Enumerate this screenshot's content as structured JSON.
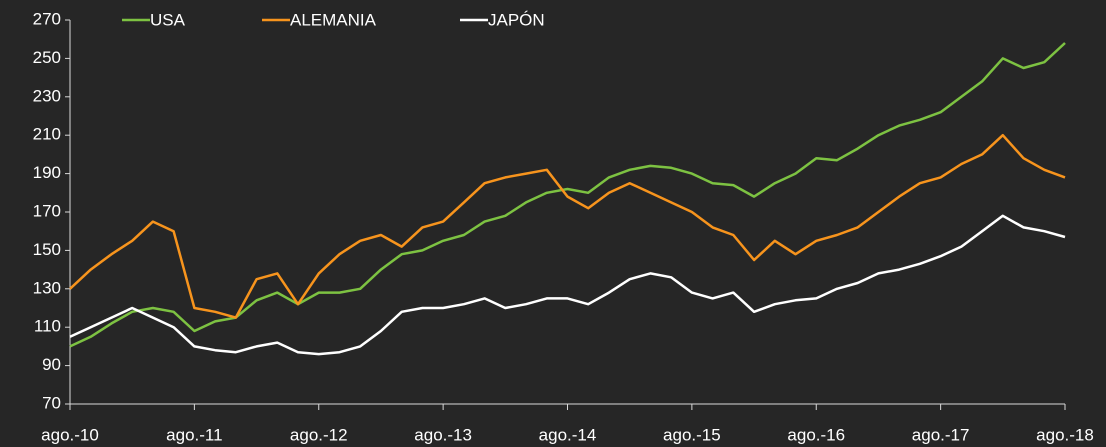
{
  "chart_data": {
    "type": "line",
    "categories": [
      "ago.-10",
      null,
      null,
      null,
      null,
      null,
      "ago.-11",
      null,
      null,
      null,
      null,
      null,
      "ago.-12",
      null,
      null,
      null,
      null,
      null,
      "ago.-13",
      null,
      null,
      null,
      null,
      null,
      "ago.-14",
      null,
      null,
      null,
      null,
      null,
      "ago.-15",
      null,
      null,
      null,
      null,
      null,
      "ago.-16",
      null,
      null,
      null,
      null,
      null,
      "ago.-17",
      null,
      null,
      null,
      null,
      null,
      "ago.-18"
    ],
    "series": [
      {
        "name": "USA",
        "color": "#7dc242",
        "values": [
          100,
          105,
          112,
          118,
          120,
          118,
          108,
          113,
          115,
          124,
          128,
          122,
          128,
          128,
          130,
          140,
          148,
          150,
          155,
          158,
          165,
          168,
          175,
          180,
          182,
          180,
          188,
          192,
          194,
          193,
          190,
          185,
          184,
          178,
          185,
          190,
          198,
          197,
          203,
          210,
          215,
          218,
          222,
          230,
          238,
          250,
          245,
          248,
          258
        ]
      },
      {
        "name": "ALEMANIA",
        "color": "#f7941d",
        "values": [
          130,
          140,
          148,
          155,
          165,
          160,
          120,
          118,
          115,
          135,
          138,
          122,
          138,
          148,
          155,
          158,
          152,
          162,
          165,
          175,
          185,
          188,
          190,
          192,
          178,
          172,
          180,
          185,
          180,
          175,
          170,
          162,
          158,
          145,
          155,
          148,
          155,
          158,
          162,
          170,
          178,
          185,
          188,
          195,
          200,
          210,
          198,
          192,
          188
        ]
      },
      {
        "name": "JAPÓN",
        "color": "#ffffff",
        "values": [
          105,
          110,
          115,
          120,
          115,
          110,
          100,
          98,
          97,
          100,
          102,
          97,
          96,
          97,
          100,
          108,
          118,
          120,
          120,
          122,
          125,
          120,
          122,
          125,
          125,
          122,
          128,
          135,
          138,
          136,
          128,
          125,
          128,
          118,
          122,
          124,
          125,
          130,
          133,
          138,
          140,
          143,
          147,
          152,
          160,
          168,
          162,
          160,
          157
        ]
      }
    ],
    "ylim": [
      70,
      270
    ],
    "yticks": [
      70,
      90,
      110,
      130,
      150,
      170,
      190,
      210,
      230,
      250,
      270
    ],
    "grid": false,
    "legend": "top"
  }
}
